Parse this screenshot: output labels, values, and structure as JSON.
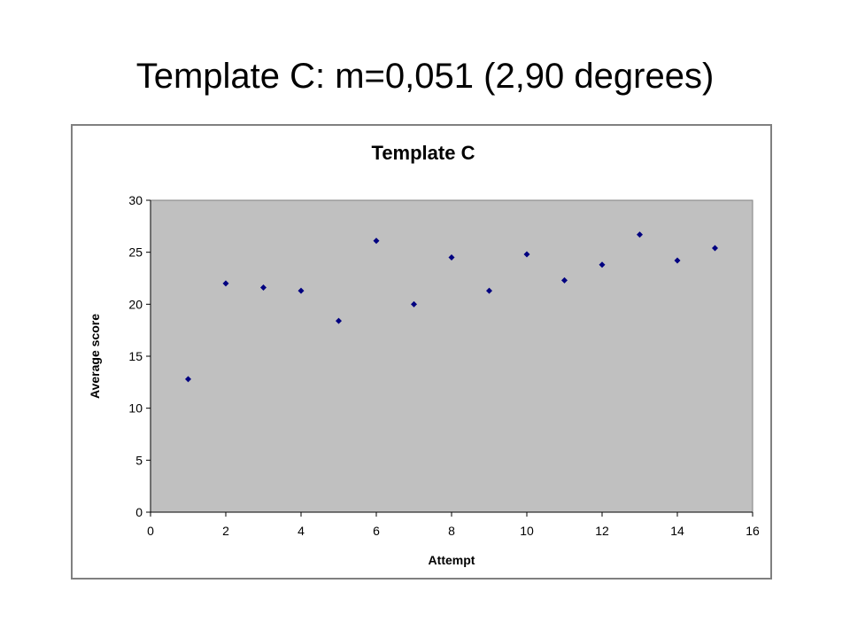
{
  "slide": {
    "title": "Template C: m=0,051 (2,90 degrees)"
  },
  "chart_data": {
    "type": "scatter",
    "title": "Template C",
    "xlabel": "Attempt",
    "ylabel": "Average score",
    "xlim": [
      0,
      16
    ],
    "ylim": [
      0,
      30
    ],
    "x_ticks": [
      0,
      2,
      4,
      6,
      8,
      10,
      12,
      14,
      16
    ],
    "y_ticks": [
      0,
      5,
      10,
      15,
      20,
      25,
      30
    ],
    "grid": false,
    "legend": "none",
    "plot_background": "#c0c0c0",
    "marker_color": "#000080",
    "series": [
      {
        "x": [
          1,
          2,
          3,
          4,
          5,
          6,
          7,
          8,
          9,
          10,
          11,
          12,
          13,
          14,
          15
        ],
        "y": [
          12.8,
          22.0,
          21.6,
          21.3,
          18.4,
          26.1,
          20.0,
          24.5,
          21.3,
          24.8,
          22.3,
          23.8,
          26.7,
          24.2,
          25.4
        ]
      }
    ]
  }
}
